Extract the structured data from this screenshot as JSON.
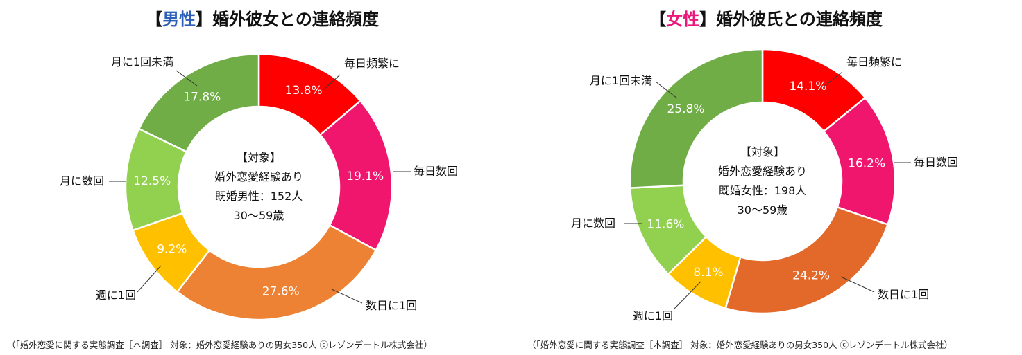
{
  "chart_data": [
    {
      "type": "pie",
      "title_prefix": "【",
      "title_gender": "男性",
      "title_gender_color": "#2e5fb6",
      "title_suffix": "】婚外彼女との連絡頻度",
      "categories": [
        "毎日頻繁に",
        "毎日数回",
        "数日に1回",
        "週に1回",
        "月に数回",
        "月に1回未満"
      ],
      "values": [
        13.8,
        19.1,
        27.6,
        9.2,
        12.5,
        17.8
      ],
      "value_labels": [
        "13.8%",
        "19.1%",
        "27.6%",
        "9.2%",
        "12.5%",
        "17.8%"
      ],
      "colors": [
        "#ff0000",
        "#f0166e",
        "#ee8234",
        "#ffc000",
        "#92d050",
        "#70ad47"
      ],
      "center_lines": [
        "【対象】",
        "婚外恋愛経験あり",
        "既婚男性：152人",
        "30～59歳"
      ],
      "source": "（「婚外恋愛に関する実態調査［本調査］ 対象：婚外恋愛経験ありの男女350人 ⓒレゾンデートル株式会社）"
    },
    {
      "type": "pie",
      "title_prefix": "【",
      "title_gender": "女性",
      "title_gender_color": "#e8197a",
      "title_suffix": "】婚外彼氏との連絡頻度",
      "categories": [
        "毎日頻繁に",
        "毎日数回",
        "数日に1回",
        "週に1回",
        "月に数回",
        "月に1回未満"
      ],
      "values": [
        14.1,
        16.2,
        24.2,
        8.1,
        11.6,
        25.8
      ],
      "value_labels": [
        "14.1%",
        "16.2%",
        "24.2%",
        "8.1%",
        "11.6%",
        "25.8%"
      ],
      "colors": [
        "#ff0000",
        "#f0166e",
        "#e2692a",
        "#ffc000",
        "#92d050",
        "#70ad47"
      ],
      "center_lines": [
        "【対象】",
        "婚外恋愛経験あり",
        "既婚女性：198人",
        "30～59歳"
      ],
      "source": "（「婚外恋愛に関する実態調査［本調査］ 対象：婚外恋愛経験ありの男女350人 ⓒレゾンデートル株式会社）"
    }
  ]
}
